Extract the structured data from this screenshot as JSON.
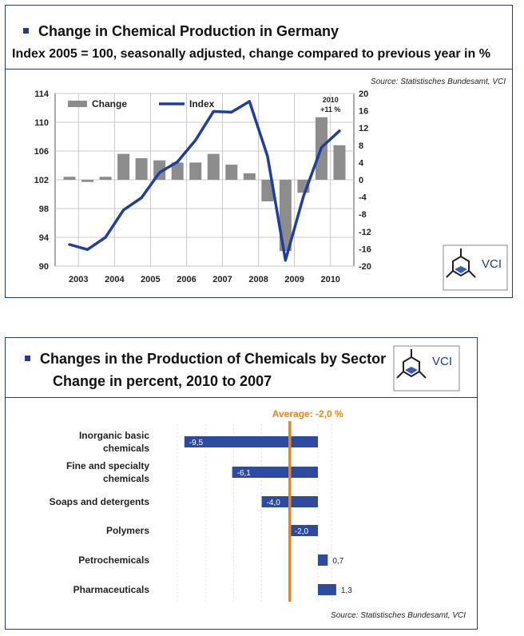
{
  "chart1": {
    "title": "Change in Chemical Production in Germany",
    "subtitle": "Index 2005 = 100, seasonally adjusted, change compared to previous year in %",
    "source": "Source: Statistisches Bundesamt, VCI",
    "legend": {
      "bars": "Change",
      "line": "Index"
    },
    "annotation": {
      "line1": "2010",
      "line2": "+11 %"
    },
    "colors": {
      "bars": "#8c8c8c",
      "line": "#1f3fa0",
      "accent": "#1f3a8a"
    },
    "logo_text": "VCI"
  },
  "chart2": {
    "title_line1": "Changes in the Production of Chemicals by Sector",
    "title_line2": "Change in percent, 2010 to 2007",
    "average_label": "Average: -2,0 %",
    "source": "Source: Statistisches Bundesamt, VCI",
    "colors": {
      "bars": "#2c4aa0",
      "average": "#f0820f"
    },
    "logo_text": "VCI"
  },
  "chart_data": [
    {
      "type": "bar",
      "title": "Change in Chemical Production in Germany",
      "subtitle": "Index 2005 = 100, seasonally adjusted, change compared to previous year in %",
      "x_tick_labels": [
        "2003",
        "2004",
        "2005",
        "2006",
        "2007",
        "2008",
        "2009",
        "2010"
      ],
      "y_left_ticks": [
        "90",
        "94",
        "98",
        "102",
        "106",
        "110",
        "114"
      ],
      "y_right_ticks": [
        "-20",
        "-16",
        "-12",
        "-8",
        "-4",
        "0",
        "4",
        "8",
        "12",
        "16",
        "20"
      ],
      "ylim_left": [
        90,
        114
      ],
      "ylim_right": [
        -20,
        20
      ],
      "series": [
        {
          "name": "Change",
          "type": "bar",
          "axis": "right",
          "x": [
            2003.0,
            2003.5,
            2004.0,
            2004.5,
            2005.0,
            2005.5,
            2006.0,
            2006.5,
            2007.0,
            2007.5,
            2008.0,
            2008.5,
            2009.0,
            2009.5,
            2010.0,
            2010.5
          ],
          "values": [
            0.7,
            -0.5,
            0.7,
            6.0,
            5.0,
            4.5,
            4.0,
            4.0,
            6.0,
            3.5,
            1.5,
            -5.0,
            -16.5,
            -3.0,
            14.5,
            8.0
          ]
        },
        {
          "name": "Index",
          "type": "line",
          "axis": "left",
          "x": [
            2003.0,
            2003.5,
            2004.0,
            2004.5,
            2005.0,
            2005.5,
            2006.0,
            2006.5,
            2007.0,
            2007.5,
            2008.0,
            2008.5,
            2009.0,
            2009.5,
            2010.0,
            2010.5
          ],
          "values": [
            93.0,
            92.3,
            94.0,
            97.8,
            99.5,
            103.0,
            104.5,
            107.5,
            111.5,
            111.4,
            112.9,
            105.3,
            90.8,
            99.7,
            106.5,
            108.8
          ]
        }
      ],
      "annotation": "2010 +11 %"
    },
    {
      "type": "bar",
      "orientation": "horizontal",
      "title": "Changes in the Production of Chemicals by Sector",
      "subtitle": "Change in percent, 2010 to 2007",
      "categories": [
        [
          "Inorganic basic",
          "chemicals"
        ],
        [
          "Fine and specialty",
          "chemicals"
        ],
        [
          "Soaps and detergents"
        ],
        [
          "Polymers"
        ],
        [
          "Petrochemicals"
        ],
        [
          "Pharmaceuticals"
        ]
      ],
      "values": [
        -9.5,
        -6.1,
        -4.0,
        -2.0,
        0.7,
        1.3
      ],
      "value_labels": [
        "-9,5",
        "-6,1",
        "-4,0",
        "-2,0",
        "0,7",
        "1,3"
      ],
      "average": -2.0,
      "average_label": "Average: -2,0 %",
      "xlim": [
        -10,
        1.5
      ]
    }
  ]
}
